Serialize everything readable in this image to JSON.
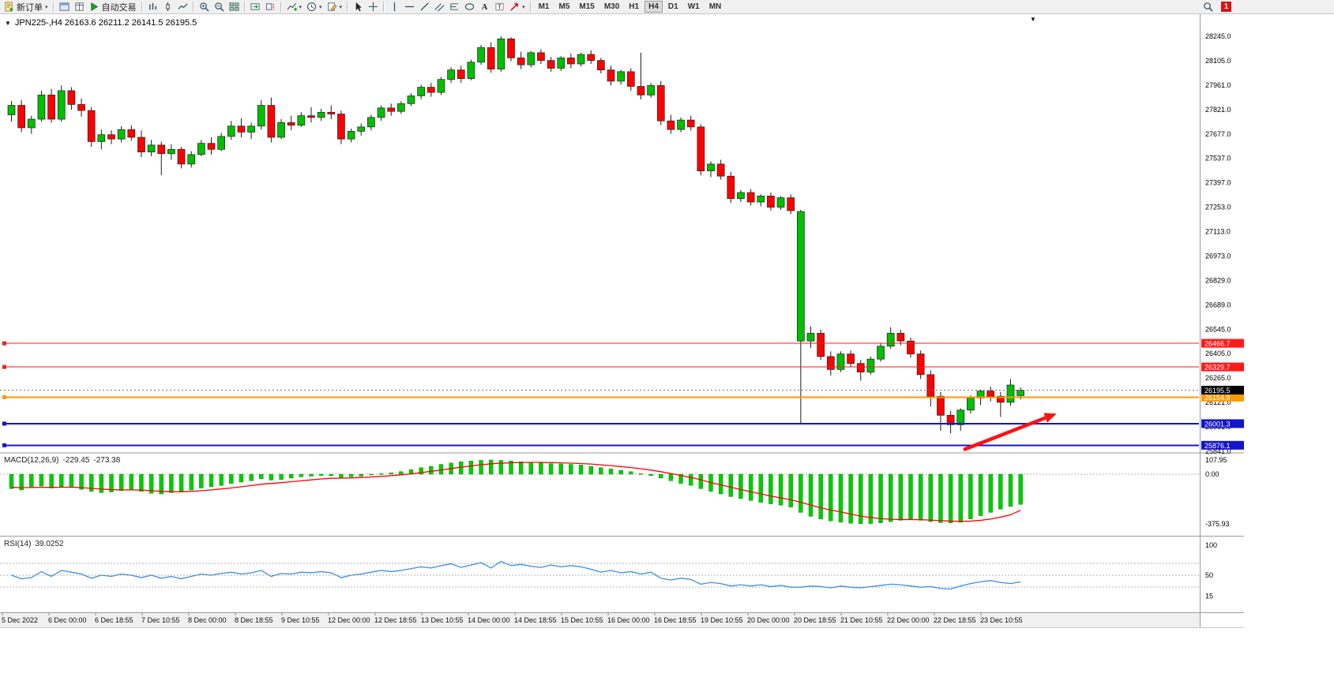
{
  "toolbar": {
    "button_groups": [
      [
        {
          "name": "new-order",
          "icon": "new-order",
          "label": "新订单",
          "dropdown": true
        }
      ],
      [
        {
          "name": "depth-of-market",
          "icon": "window"
        },
        {
          "name": "data-window",
          "icon": "book"
        },
        {
          "name": "algo-trading",
          "icon": "play",
          "label": "自动交易"
        }
      ],
      [
        {
          "name": "bar-chart-mode",
          "icon": "bars"
        },
        {
          "name": "candlestick-mode",
          "icon": "candle"
        },
        {
          "name": "line-chart-mode",
          "icon": "line"
        }
      ],
      [
        {
          "name": "zoom-in",
          "icon": "zoom-in"
        },
        {
          "name": "zoom-out",
          "icon": "zoom-out"
        },
        {
          "name": "tile-windows",
          "icon": "grid"
        }
      ],
      [
        {
          "name": "auto-scroll",
          "icon": "autoscroll"
        },
        {
          "name": "chart-shift",
          "icon": "shift"
        }
      ],
      [
        {
          "name": "indicators",
          "icon": "indicator-plus",
          "dropdown": true
        },
        {
          "name": "periods",
          "icon": "clock",
          "dropdown": true
        },
        {
          "name": "templates",
          "icon": "template",
          "dropdown": true
        }
      ],
      [
        {
          "name": "cursor",
          "icon": "cursor"
        },
        {
          "name": "crosshair",
          "icon": "crosshair"
        }
      ],
      [
        {
          "name": "vertical-line-tool",
          "icon": "vline"
        },
        {
          "name": "horizontal-line-tool",
          "icon": "hline"
        },
        {
          "name": "trendline-tool",
          "icon": "tline"
        },
        {
          "name": "channel-tool",
          "icon": "channel"
        },
        {
          "name": "fibonacci-tool",
          "icon": "fib"
        },
        {
          "name": "shapes-tool",
          "icon": "shapes"
        },
        {
          "name": "text-tool",
          "icon": "text-a"
        },
        {
          "name": "label-tool",
          "icon": "label-t"
        },
        {
          "name": "arrow-objects",
          "icon": "arrow-obj",
          "dropdown": true
        }
      ]
    ],
    "timeframes": [
      "M1",
      "M5",
      "M15",
      "M30",
      "H1",
      "H4",
      "D1",
      "W1",
      "MN"
    ],
    "active_timeframe": "H4",
    "right_buttons": [
      {
        "name": "search",
        "icon": "search"
      },
      {
        "name": "notifications",
        "badge": "1"
      }
    ]
  },
  "chart": {
    "title": "JPN225-,H4 26163.6 26211.2 26141.5 26195.5",
    "symbol": "JPN225-",
    "period": "H4"
  },
  "indicators": {
    "macd": {
      "label": "MACD(12,26,9)",
      "value": "-229.45",
      "signal": "-273.38"
    },
    "rsi": {
      "label": "RSI(14)",
      "value": "39.0252"
    }
  },
  "chart_data": {
    "type": "candlestick",
    "symbol": "JPN225-",
    "period": "H4",
    "colors": {
      "up": "#00BE00",
      "down": "#FF0000",
      "wick": "#1A1A1A",
      "macd_hist": "#00CC00",
      "macd_signal": "#FF0000",
      "rsi_line": "#3E8EDE"
    },
    "price_axis": [
      "28245.0",
      "28105.0",
      "27961.0",
      "27821.0",
      "27677.0",
      "27537.0",
      "27397.0",
      "27253.0",
      "27113.0",
      "26973.0",
      "26829.0",
      "26689.0",
      "26545.0",
      "26405.0",
      "26265.0",
      "26121.0",
      "25981.0",
      "25841.0"
    ],
    "candles": [
      [
        27790,
        27870,
        27750,
        27845,
        "g"
      ],
      [
        27845,
        27875,
        27690,
        27715,
        "r"
      ],
      [
        27715,
        27785,
        27680,
        27765,
        "g"
      ],
      [
        27765,
        27930,
        27750,
        27905,
        "g"
      ],
      [
        27905,
        27940,
        27745,
        27765,
        "r"
      ],
      [
        27765,
        27960,
        27750,
        27930,
        "g"
      ],
      [
        27930,
        27950,
        27820,
        27850,
        "r"
      ],
      [
        27850,
        27885,
        27780,
        27815,
        "r"
      ],
      [
        27815,
        27835,
        27605,
        27635,
        "r"
      ],
      [
        27635,
        27705,
        27590,
        27675,
        "g"
      ],
      [
        27675,
        27700,
        27620,
        27650,
        "r"
      ],
      [
        27650,
        27725,
        27630,
        27705,
        "g"
      ],
      [
        27705,
        27730,
        27640,
        27660,
        "r"
      ],
      [
        27660,
        27700,
        27545,
        27575,
        "r"
      ],
      [
        27575,
        27645,
        27550,
        27615,
        "g"
      ],
      [
        27615,
        27635,
        27440,
        27565,
        "r"
      ],
      [
        27565,
        27620,
        27530,
        27590,
        "g"
      ],
      [
        27590,
        27605,
        27480,
        27505,
        "r"
      ],
      [
        27505,
        27580,
        27485,
        27560,
        "g"
      ],
      [
        27560,
        27645,
        27550,
        27625,
        "g"
      ],
      [
        27625,
        27660,
        27560,
        27590,
        "r"
      ],
      [
        27590,
        27685,
        27580,
        27665,
        "g"
      ],
      [
        27665,
        27755,
        27645,
        27725,
        "g"
      ],
      [
        27725,
        27770,
        27660,
        27690,
        "r"
      ],
      [
        27690,
        27745,
        27650,
        27725,
        "g"
      ],
      [
        27725,
        27875,
        27705,
        27845,
        "g"
      ],
      [
        27845,
        27890,
        27630,
        27660,
        "r"
      ],
      [
        27660,
        27765,
        27650,
        27745,
        "g"
      ],
      [
        27745,
        27785,
        27700,
        27730,
        "r"
      ],
      [
        27730,
        27805,
        27720,
        27785,
        "g"
      ],
      [
        27785,
        27835,
        27745,
        27775,
        "r"
      ],
      [
        27775,
        27825,
        27755,
        27805,
        "g"
      ],
      [
        27805,
        27845,
        27765,
        27795,
        "r"
      ],
      [
        27795,
        27815,
        27620,
        27650,
        "r"
      ],
      [
        27650,
        27710,
        27630,
        27695,
        "g"
      ],
      [
        27695,
        27740,
        27670,
        27720,
        "g"
      ],
      [
        27720,
        27790,
        27700,
        27775,
        "g"
      ],
      [
        27775,
        27845,
        27755,
        27830,
        "g"
      ],
      [
        27830,
        27855,
        27785,
        27810,
        "r"
      ],
      [
        27810,
        27870,
        27795,
        27855,
        "g"
      ],
      [
        27855,
        27915,
        27840,
        27900,
        "g"
      ],
      [
        27900,
        27965,
        27880,
        27950,
        "g"
      ],
      [
        27950,
        27975,
        27895,
        27920,
        "r"
      ],
      [
        27920,
        28010,
        27905,
        27995,
        "g"
      ],
      [
        27995,
        28065,
        27975,
        28050,
        "g"
      ],
      [
        28050,
        28075,
        27975,
        28000,
        "r"
      ],
      [
        28000,
        28110,
        27990,
        28095,
        "g"
      ],
      [
        28095,
        28195,
        28080,
        28180,
        "g"
      ],
      [
        28180,
        28210,
        28035,
        28055,
        "r"
      ],
      [
        28055,
        28245,
        28040,
        28230,
        "g"
      ],
      [
        28230,
        28240,
        28100,
        28120,
        "r"
      ],
      [
        28120,
        28155,
        28055,
        28080,
        "r"
      ],
      [
        28080,
        28160,
        28065,
        28150,
        "g"
      ],
      [
        28150,
        28170,
        28085,
        28105,
        "r"
      ],
      [
        28105,
        28125,
        28040,
        28060,
        "r"
      ],
      [
        28060,
        28130,
        28045,
        28120,
        "g"
      ],
      [
        28120,
        28145,
        28060,
        28085,
        "r"
      ],
      [
        28085,
        28150,
        28070,
        28140,
        "g"
      ],
      [
        28140,
        28165,
        28085,
        28105,
        "r"
      ],
      [
        28105,
        28120,
        28030,
        28050,
        "r"
      ],
      [
        28050,
        28075,
        27960,
        27985,
        "r"
      ],
      [
        27985,
        28050,
        27965,
        28040,
        "g"
      ],
      [
        28040,
        28060,
        27930,
        27955,
        "r"
      ],
      [
        27955,
        28150,
        27880,
        27905,
        "r"
      ],
      [
        27905,
        27975,
        27890,
        27960,
        "g"
      ],
      [
        27960,
        27985,
        27730,
        27755,
        "r"
      ],
      [
        27755,
        27790,
        27680,
        27705,
        "r"
      ],
      [
        27705,
        27775,
        27690,
        27760,
        "g"
      ],
      [
        27760,
        27785,
        27700,
        27720,
        "r"
      ],
      [
        27720,
        27735,
        27440,
        27465,
        "r"
      ],
      [
        27465,
        27520,
        27430,
        27505,
        "g"
      ],
      [
        27505,
        27530,
        27415,
        27435,
        "r"
      ],
      [
        27435,
        27460,
        27280,
        27305,
        "r"
      ],
      [
        27305,
        27355,
        27285,
        27340,
        "g"
      ],
      [
        27340,
        27360,
        27265,
        27285,
        "r"
      ],
      [
        27285,
        27330,
        27260,
        27320,
        "g"
      ],
      [
        27320,
        27340,
        27235,
        27255,
        "r"
      ],
      [
        27255,
        27320,
        27240,
        27310,
        "g"
      ],
      [
        27310,
        27330,
        27215,
        27235,
        "r"
      ],
      [
        26480,
        27240,
        26000,
        27230,
        "g"
      ],
      [
        26480,
        26565,
        26440,
        26525,
        "g"
      ],
      [
        26525,
        26545,
        26370,
        26390,
        "r"
      ],
      [
        26390,
        26420,
        26280,
        26315,
        "r"
      ],
      [
        26315,
        26420,
        26300,
        26405,
        "g"
      ],
      [
        26405,
        26425,
        26330,
        26350,
        "r"
      ],
      [
        26350,
        26370,
        26250,
        26300,
        "r"
      ],
      [
        26300,
        26390,
        26285,
        26375,
        "g"
      ],
      [
        26375,
        26465,
        26360,
        26450,
        "g"
      ],
      [
        26450,
        26560,
        26435,
        26525,
        "g"
      ],
      [
        26525,
        26545,
        26455,
        26480,
        "r"
      ],
      [
        26480,
        26500,
        26385,
        26405,
        "r"
      ],
      [
        26405,
        26425,
        26260,
        26285,
        "r"
      ],
      [
        26285,
        26310,
        26100,
        26160,
        "r"
      ],
      [
        26160,
        26185,
        25960,
        26050,
        "r"
      ],
      [
        26050,
        26075,
        25945,
        25995,
        "r"
      ],
      [
        25995,
        26090,
        25960,
        26080,
        "g"
      ],
      [
        26080,
        26165,
        26060,
        26150,
        "g"
      ],
      [
        26150,
        26200,
        26110,
        26190,
        "g"
      ],
      [
        26190,
        26215,
        26130,
        26160,
        "r"
      ],
      [
        26160,
        26185,
        26040,
        26125,
        "r"
      ],
      [
        26125,
        26260,
        26105,
        26225,
        "g"
      ],
      [
        26163.6,
        26211.2,
        26141.5,
        26195.5,
        "g"
      ]
    ],
    "hlines": [
      {
        "price": 26466.7,
        "label": "26466.7",
        "color": "#FF1A1A",
        "width": 1
      },
      {
        "price": 26329.7,
        "label": "26329.7",
        "color": "#FF1A1A",
        "width": 1
      },
      {
        "price": 26154.8,
        "label": "26154.8",
        "color": "#FF9900",
        "width": 2
      },
      {
        "price": 26001.3,
        "label": "26001.3",
        "color": "#1414CC",
        "width": 2
      },
      {
        "price": 25876.1,
        "label": "25876.1",
        "color": "#1414CC",
        "width": 2
      }
    ],
    "bid": {
      "price": 26195.5,
      "label": "26195.5",
      "color": "#000000"
    },
    "arrow": {
      "from": {
        "index": 95.3,
        "price": 25850
      },
      "to": {
        "index": 104.6,
        "price": 26060
      },
      "color": "#FF1010"
    },
    "macd": {
      "params": "12,26,9",
      "value": -229.45,
      "signal_value": -273.38,
      "scale": [
        {
          "v": 107.95,
          "t": "107.95"
        },
        {
          "v": 0,
          "t": "0.00"
        },
        {
          "v": -375.93,
          "t": "-375.93"
        }
      ],
      "histogram": [
        -110,
        -120,
        -100,
        -90,
        -105,
        -95,
        -100,
        -115,
        -130,
        -140,
        -135,
        -125,
        -120,
        -130,
        -145,
        -150,
        -140,
        -135,
        -120,
        -105,
        -95,
        -85,
        -70,
        -60,
        -50,
        -35,
        -45,
        -40,
        -30,
        -20,
        -15,
        -10,
        -12,
        -25,
        -20,
        -15,
        -5,
        5,
        10,
        20,
        35,
        50,
        60,
        75,
        85,
        95,
        100,
        105,
        108,
        105,
        100,
        95,
        90,
        85,
        80,
        78,
        75,
        70,
        60,
        50,
        40,
        30,
        20,
        5,
        -10,
        -30,
        -50,
        -70,
        -85,
        -110,
        -130,
        -150,
        -170,
        -185,
        -200,
        -215,
        -225,
        -235,
        -250,
        -290,
        -320,
        -340,
        -355,
        -365,
        -372,
        -376,
        -375,
        -370,
        -360,
        -350,
        -345,
        -350,
        -360,
        -368,
        -370,
        -365,
        -340,
        -315,
        -290,
        -265,
        -245,
        -229.45
      ],
      "signal": [
        -100,
        -102,
        -101,
        -99,
        -100,
        -99,
        -99,
        -102,
        -107,
        -113,
        -117,
        -119,
        -119,
        -121,
        -125,
        -130,
        -132,
        -133,
        -130,
        -125,
        -119,
        -112,
        -104,
        -95,
        -86,
        -76,
        -70,
        -64,
        -57,
        -50,
        -43,
        -36,
        -31,
        -30,
        -28,
        -25,
        -21,
        -16,
        -11,
        -5,
        3,
        12,
        22,
        32,
        43,
        53,
        63,
        72,
        79,
        84,
        87,
        89,
        90,
        90,
        88,
        86,
        84,
        81,
        77,
        71,
        65,
        58,
        50,
        41,
        31,
        19,
        5,
        -10,
        -25,
        -42,
        -64,
        -81,
        -99,
        -116,
        -133,
        -149,
        -166,
        -180,
        -194,
        -213,
        -234,
        -255,
        -272,
        -286,
        -303,
        -318,
        -329,
        -337,
        -342,
        -344,
        -344,
        -345,
        -348,
        -352,
        -356,
        -358,
        -356,
        -350,
        -340,
        -326,
        -308,
        -273.38
      ]
    },
    "rsi": {
      "params": "14",
      "value": 39.0252,
      "scale": [
        {
          "v": 100,
          "t": "100"
        },
        {
          "v": 50,
          "t": "50"
        },
        {
          "v": 15,
          "t": "15"
        }
      ],
      "levels": [
        70,
        50,
        30
      ],
      "values": [
        50,
        44,
        46,
        56,
        48,
        58,
        55,
        52,
        45,
        50,
        48,
        52,
        50,
        46,
        50,
        45,
        48,
        44,
        48,
        52,
        50,
        53,
        55,
        52,
        54,
        58,
        48,
        53,
        52,
        55,
        54,
        56,
        54,
        46,
        50,
        52,
        55,
        58,
        56,
        58,
        61,
        64,
        62,
        66,
        69,
        63,
        67,
        71,
        62,
        73,
        66,
        68,
        65,
        63,
        67,
        64,
        66,
        64,
        60,
        55,
        58,
        54,
        56,
        52,
        55,
        45,
        42,
        45,
        43,
        35,
        38,
        36,
        32,
        34,
        32,
        34,
        31,
        33,
        30,
        30,
        32,
        31,
        29,
        32,
        30,
        29,
        31,
        33,
        35,
        34,
        32,
        30,
        31,
        28,
        27,
        32,
        36,
        39,
        41,
        38,
        36,
        39.03
      ]
    },
    "time_labels": [
      "5 Dec 2022",
      "6 Dec 00:00",
      "6 Dec 18:55",
      "7 Dec 10:55",
      "8 Dec 00:00",
      "8 Dec 18:55",
      "9 Dec 10:55",
      "12 Dec 00:00",
      "12 Dec 18:55",
      "13 Dec 10:55",
      "14 Dec 00:00",
      "14 Dec 18:55",
      "15 Dec 10:55",
      "16 Dec 00:00",
      "16 Dec 18:55",
      "19 Dec 10:55",
      "20 Dec 00:00",
      "20 Dec 18:55",
      "21 Dec 10:55",
      "22 Dec 00:00",
      "22 Dec 18:55",
      "23 Dec 10:55"
    ]
  }
}
